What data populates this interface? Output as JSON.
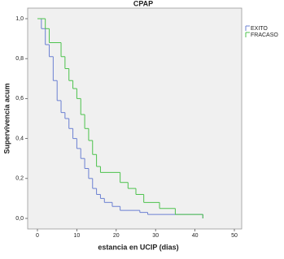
{
  "chart_data": {
    "type": "step",
    "title": "CPAP",
    "x_label": "estancia en UCIP (dias)",
    "y_label": "Supervivencia acum",
    "xlim": [
      0,
      50
    ],
    "xticks": [
      0,
      10,
      20,
      30,
      40,
      50
    ],
    "ylim": [
      0,
      1.0
    ],
    "yticks": [
      {
        "value": 0,
        "label": "0,0"
      },
      {
        "value": 0.2,
        "label": "0,2"
      },
      {
        "value": 0.4,
        "label": "0,4"
      },
      {
        "value": 0.6,
        "label": "0,6"
      },
      {
        "value": 0.8,
        "label": "0,8"
      },
      {
        "value": 1.0,
        "label": "1,0"
      }
    ],
    "grid": false,
    "legend": "right",
    "series": [
      {
        "name": "EXITO",
        "color": "#6b80d2",
        "x": [
          0,
          1,
          2,
          3,
          4,
          5,
          6,
          7,
          8,
          9,
          10,
          11,
          12,
          13,
          14,
          15,
          16,
          17,
          19,
          21,
          26,
          28,
          42
        ],
        "values": [
          1.0,
          0.95,
          0.87,
          0.81,
          0.69,
          0.59,
          0.53,
          0.5,
          0.45,
          0.4,
          0.35,
          0.3,
          0.25,
          0.2,
          0.15,
          0.12,
          0.1,
          0.08,
          0.06,
          0.04,
          0.03,
          0.02,
          0
        ]
      },
      {
        "name": "FRACASO",
        "color": "#4cc24c",
        "x": [
          0,
          2,
          3,
          6,
          7,
          8,
          9,
          10,
          11,
          12,
          13,
          14,
          15,
          16,
          21,
          23,
          25,
          27,
          31,
          35,
          42
        ],
        "values": [
          1.0,
          0.95,
          0.88,
          0.81,
          0.75,
          0.69,
          0.65,
          0.6,
          0.52,
          0.45,
          0.39,
          0.32,
          0.26,
          0.23,
          0.18,
          0.15,
          0.12,
          0.08,
          0.05,
          0.02,
          0
        ]
      }
    ]
  }
}
